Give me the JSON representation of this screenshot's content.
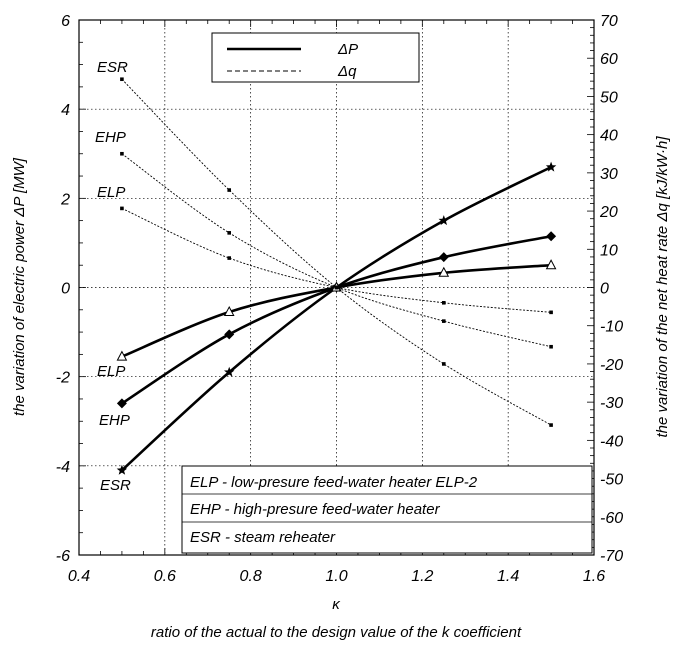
{
  "chart_data": {
    "type": "line",
    "xlabel": "κ",
    "x_caption": "ratio of the actual to the design value of the k coefficient",
    "ylabel_left": "the variation of electric power ΔP [MW]",
    "ylabel_right": "the variation of the net heat rate Δq [kJ/kW·h]",
    "xlim": [
      0.4,
      1.6
    ],
    "ylim_left": [
      -6,
      6
    ],
    "ylim_right": [
      -70,
      70
    ],
    "x_ticks": [
      "0.4",
      "0.6",
      "0.8",
      "1.0",
      "1.2",
      "1.4",
      "1.6"
    ],
    "y_left_ticks": [
      "-6",
      "-4",
      "-2",
      "0",
      "2",
      "4",
      "6"
    ],
    "y_right_ticks": [
      "-70",
      "-60",
      "-50",
      "-40",
      "-30",
      "-20",
      "-10",
      "0",
      "10",
      "20",
      "30",
      "40",
      "50",
      "60",
      "70"
    ],
    "grid": true,
    "legend": {
      "position": "top-center",
      "entries": [
        {
          "label": "ΔP",
          "style": "solid"
        },
        {
          "label": "Δq",
          "style": "dashed"
        }
      ]
    },
    "series": [
      {
        "name": "ESR",
        "quantity": "ΔP",
        "axis": "left",
        "marker": "star",
        "x": [
          0.5,
          0.75,
          1.0,
          1.25,
          1.5
        ],
        "y": [
          -4.1,
          -1.9,
          0,
          1.5,
          2.7
        ]
      },
      {
        "name": "EHP",
        "quantity": "ΔP",
        "axis": "left",
        "marker": "diamond",
        "x": [
          0.5,
          0.75,
          1.0,
          1.25,
          1.5
        ],
        "y": [
          -2.6,
          -1.05,
          0,
          0.68,
          1.15
        ]
      },
      {
        "name": "ELP",
        "quantity": "ΔP",
        "axis": "left",
        "marker": "triangle",
        "x": [
          0.5,
          0.75,
          1.0,
          1.25,
          1.5
        ],
        "y": [
          -1.55,
          -0.55,
          0,
          0.33,
          0.5
        ]
      },
      {
        "name": "ESR",
        "quantity": "Δq",
        "axis": "right",
        "marker": "square",
        "x": [
          0.5,
          0.75,
          1.0,
          1.25,
          1.5
        ],
        "y": [
          54.5,
          25.5,
          0,
          -20,
          -36
        ]
      },
      {
        "name": "EHP",
        "quantity": "Δq",
        "axis": "right",
        "marker": "square",
        "x": [
          0.5,
          0.75,
          1.0,
          1.25,
          1.5
        ],
        "y": [
          35,
          14.3,
          0,
          -8.8,
          -15.5
        ]
      },
      {
        "name": "ELP",
        "quantity": "Δq",
        "axis": "right",
        "marker": "square",
        "x": [
          0.5,
          0.75,
          1.0,
          1.25,
          1.5
        ],
        "y": [
          20.7,
          7.7,
          0,
          -4,
          -6.5
        ]
      }
    ],
    "curve_labels": {
      "upper": [
        "ESR",
        "EHP",
        "ELP"
      ],
      "lower": [
        "ELP",
        "EHP",
        "ESR"
      ]
    },
    "annotation_box": [
      "ELP - low-presure feed-water heater ELP-2",
      "EHP - high-presure feed-water heater",
      "ESR - steam reheater"
    ]
  }
}
